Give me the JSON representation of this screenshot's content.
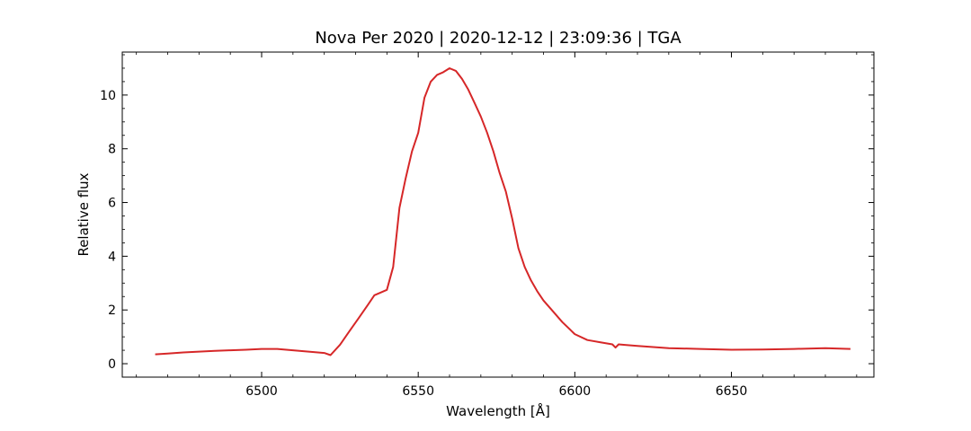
{
  "chart_data": {
    "type": "line",
    "title": "Nova Per 2020 | 2020-12-12 | 23:09:36 | TGA",
    "xlabel": "Wavelength [Å]",
    "ylabel": "Relative flux",
    "xlim": [
      6455.5,
      6695.5
    ],
    "ylim": [
      -0.5,
      11.6
    ],
    "xticks": [
      6500,
      6550,
      6600,
      6650
    ],
    "yticks": [
      0,
      2,
      4,
      6,
      8,
      10
    ],
    "xticklabels": [
      "6500",
      "6550",
      "6600",
      "6650"
    ],
    "yticklabels": [
      "0",
      "2",
      "4",
      "6",
      "8",
      "10"
    ],
    "x_minor_step": 10,
    "y_minor_step": 0.5,
    "grid": false,
    "legend": "none",
    "series": [
      {
        "color": "#d62728",
        "x": [
          6466,
          6470,
          6475,
          6480,
          6485,
          6490,
          6495,
          6500,
          6505,
          6510,
          6515,
          6520,
          6522,
          6525,
          6528,
          6531,
          6534,
          6536,
          6538,
          6540,
          6542,
          6544,
          6546,
          6548,
          6550,
          6552,
          6554,
          6556,
          6558,
          6560,
          6562,
          6564,
          6566,
          6568,
          6570,
          6572,
          6574,
          6576,
          6578,
          6580,
          6582,
          6584,
          6586,
          6588,
          6590,
          6593,
          6596,
          6600,
          6604,
          6608,
          6612,
          6613,
          6614,
          6616,
          6620,
          6625,
          6630,
          6640,
          6650,
          6660,
          6670,
          6680,
          6688
        ],
        "y": [
          0.35,
          0.38,
          0.42,
          0.45,
          0.48,
          0.5,
          0.52,
          0.55,
          0.55,
          0.5,
          0.45,
          0.4,
          0.32,
          0.7,
          1.2,
          1.7,
          2.2,
          2.55,
          2.65,
          2.75,
          3.6,
          5.8,
          6.9,
          7.9,
          8.6,
          9.9,
          10.5,
          10.75,
          10.85,
          11.0,
          10.9,
          10.6,
          10.2,
          9.7,
          9.2,
          8.6,
          7.9,
          7.1,
          6.4,
          5.4,
          4.3,
          3.6,
          3.1,
          2.7,
          2.35,
          1.95,
          1.55,
          1.1,
          0.88,
          0.8,
          0.72,
          0.6,
          0.72,
          0.7,
          0.66,
          0.62,
          0.58,
          0.55,
          0.52,
          0.53,
          0.55,
          0.58,
          0.55
        ]
      }
    ]
  }
}
